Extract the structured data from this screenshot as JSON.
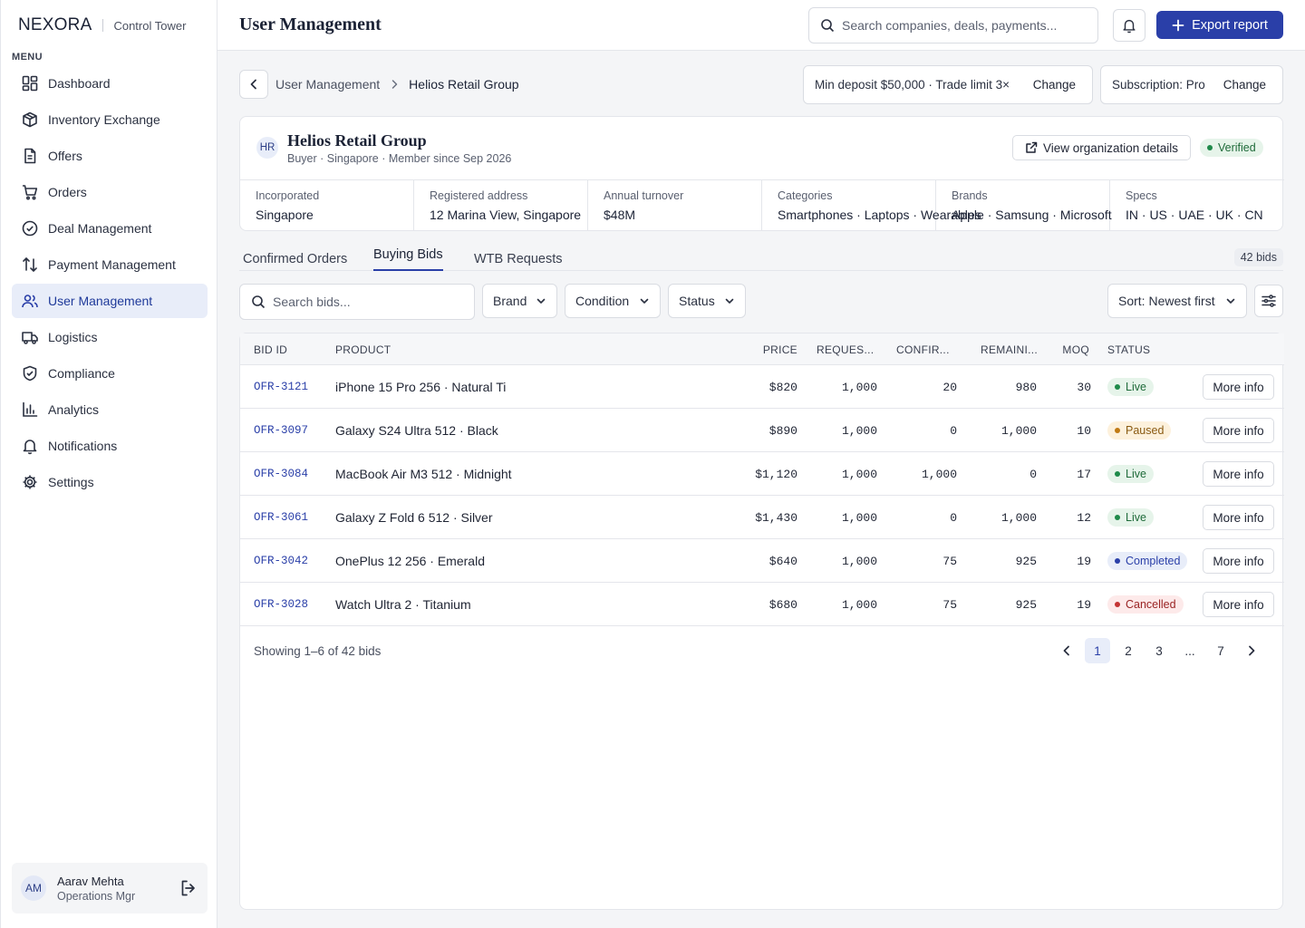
{
  "brand": {
    "name": "NEXORA",
    "subtitle": "Control Tower"
  },
  "sidebar": {
    "menu_label": "MENU",
    "items": [
      {
        "label": "Dashboard",
        "icon": "dashboard-icon"
      },
      {
        "label": "Inventory Exchange",
        "icon": "box-icon"
      },
      {
        "label": "Offers",
        "icon": "document-icon"
      },
      {
        "label": "Orders",
        "icon": "cart-icon"
      },
      {
        "label": "Deal Management",
        "icon": "check-circle-icon"
      },
      {
        "label": "Payment Management",
        "icon": "arrows-updown-icon"
      },
      {
        "label": "User Management",
        "icon": "users-icon",
        "active": true
      },
      {
        "label": "Logistics",
        "icon": "truck-icon"
      },
      {
        "label": "Compliance",
        "icon": "shield-icon"
      },
      {
        "label": "Analytics",
        "icon": "bar-chart-icon"
      },
      {
        "label": "Notifications",
        "icon": "bell-icon"
      },
      {
        "label": "Settings",
        "icon": "gear-icon"
      }
    ],
    "user": {
      "initials": "AM",
      "name": "Aarav Mehta",
      "role": "Operations Mgr"
    }
  },
  "header": {
    "title": "User Management",
    "search_placeholder": "Search companies, deals, payments...",
    "export_label": "Export report"
  },
  "breadcrumb": {
    "parent": "User Management",
    "current": "Helios Retail Group"
  },
  "limits": {
    "deposit_text": "Min deposit $50,000 · Trade limit 3×",
    "deposit_change": "Change",
    "subscription_text": "Subscription: Pro",
    "subscription_change": "Change"
  },
  "org": {
    "initials": "HR",
    "name": "Helios Retail Group",
    "meta": "Buyer · Singapore · Member since Sep 2026",
    "view_label": "View organization details",
    "status": "Verified",
    "facts": [
      {
        "label": "Incorporated",
        "value": "Singapore"
      },
      {
        "label": "Registered address",
        "value": "12 Marina View, Singapore"
      },
      {
        "label": "Annual turnover",
        "value": "$48M"
      },
      {
        "label": "Categories",
        "value": "Smartphones · Laptops · Wearables"
      },
      {
        "label": "Brands",
        "value": "Apple · Samsung · Microsoft"
      },
      {
        "label": "Specs",
        "value": "IN · US · UAE · UK · CN"
      }
    ]
  },
  "tabs": [
    {
      "label": "Confirmed Orders"
    },
    {
      "label": "Buying Bids",
      "active": true
    },
    {
      "label": "WTB Requests"
    }
  ],
  "bid_count": "42 bids",
  "filters": {
    "search_placeholder": "Search bids...",
    "brand": "Brand",
    "condition": "Condition",
    "status": "Status",
    "sort": "Sort: Newest first"
  },
  "table": {
    "columns": [
      "BID ID",
      "PRODUCT",
      "PRICE",
      "REQUES...",
      "CONFIR...",
      "REMAINI...",
      "MOQ",
      "STATUS"
    ],
    "rows": [
      {
        "id": "OFR-3121",
        "product": "iPhone 15 Pro 256 · Natural Ti",
        "price": "$820",
        "requested": "1,000",
        "confirmed": "20",
        "remaining": "980",
        "moq": "30",
        "status": "Live"
      },
      {
        "id": "OFR-3097",
        "product": "Galaxy S24 Ultra 512 · Black",
        "price": "$890",
        "requested": "1,000",
        "confirmed": "0",
        "remaining": "1,000",
        "moq": "10",
        "status": "Paused"
      },
      {
        "id": "OFR-3084",
        "product": "MacBook Air M3 512 · Midnight",
        "price": "$1,120",
        "requested": "1,000",
        "confirmed": "1,000",
        "remaining": "0",
        "moq": "17",
        "status": "Live"
      },
      {
        "id": "OFR-3061",
        "product": "Galaxy Z Fold 6 512 · Silver",
        "price": "$1,430",
        "requested": "1,000",
        "confirmed": "0",
        "remaining": "1,000",
        "moq": "12",
        "status": "Live"
      },
      {
        "id": "OFR-3042",
        "product": "OnePlus 12 256 · Emerald",
        "price": "$640",
        "requested": "1,000",
        "confirmed": "75",
        "remaining": "925",
        "moq": "19",
        "status": "Completed"
      },
      {
        "id": "OFR-3028",
        "product": "Watch Ultra 2 · Titanium",
        "price": "$680",
        "requested": "1,000",
        "confirmed": "75",
        "remaining": "925",
        "moq": "19",
        "status": "Cancelled"
      }
    ],
    "more_label": "More info",
    "footer": "Showing 1–6 of 42 bids",
    "pages": [
      "1",
      "2",
      "3",
      "...",
      "7"
    ]
  },
  "status_colors": {
    "Live": {
      "bg": "#e6f4ea",
      "fg": "#1f6b3a",
      "dot": "#1f8a4a"
    },
    "Paused": {
      "bg": "#fdf1dc",
      "fg": "#8a5a12",
      "dot": "#c07a14"
    },
    "Completed": {
      "bg": "#e8edf9",
      "fg": "#2a3fa8",
      "dot": "#2a3fa8"
    },
    "Cancelled": {
      "bg": "#fdeaea",
      "fg": "#9a2424",
      "dot": "#c43434"
    }
  },
  "accent": "#2a3fa8"
}
